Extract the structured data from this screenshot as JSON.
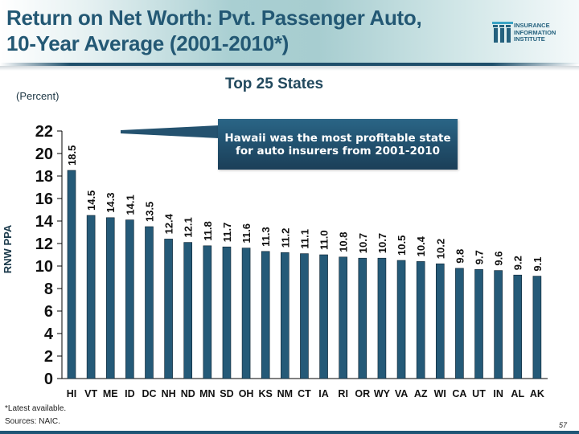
{
  "header": {
    "title_line1": "Return on Net Worth: Pvt. Passenger Auto,",
    "title_line2": "10-Year Average (2001-2010*)",
    "logo": {
      "icon": "iii-logo-icon",
      "line1": "INSURANCE",
      "line2": "INFORMATION",
      "line3": "INSTITUTE"
    }
  },
  "subtitle": {
    "units": "(Percent)",
    "heading": "Top 25 States"
  },
  "callout": {
    "line1": "Hawaii was the most profitable state",
    "line2": "for auto insurers from 2001-2010"
  },
  "footer": {
    "footnote": "*Latest available.",
    "source": "Sources:  NAIC.",
    "page_number": "57"
  },
  "colors": {
    "bar": "#255a78",
    "title": "#235874",
    "callout": "#214f6c"
  },
  "chart_data": {
    "type": "bar",
    "title": "Return on Net Worth: Pvt. Passenger Auto, 10-Year Average (2001-2010*)",
    "subtitle": "Top 25 States",
    "xlabel": "",
    "ylabel": "RNW PPA",
    "units": "Percent",
    "ylim": [
      0,
      22
    ],
    "yticks": [
      0,
      2,
      4,
      6,
      8,
      10,
      12,
      14,
      16,
      18,
      20,
      22
    ],
    "grid": false,
    "categories": [
      "HI",
      "VT",
      "ME",
      "ID",
      "DC",
      "NH",
      "ND",
      "MN",
      "SD",
      "OH",
      "KS",
      "NM",
      "CT",
      "IA",
      "RI",
      "OR",
      "WY",
      "VA",
      "AZ",
      "WI",
      "CA",
      "UT",
      "IN",
      "AL",
      "AK"
    ],
    "values": [
      18.5,
      14.5,
      14.3,
      14.1,
      13.5,
      12.4,
      12.1,
      11.8,
      11.7,
      11.6,
      11.3,
      11.2,
      11.1,
      11.0,
      10.8,
      10.7,
      10.7,
      10.5,
      10.4,
      10.2,
      9.8,
      9.7,
      9.6,
      9.2,
      9.1
    ],
    "data_labels": [
      "18.5",
      "14.5",
      "14.3",
      "14.1",
      "13.5",
      "12.4",
      "12.1",
      "11.8",
      "11.7",
      "11.6",
      "11.3",
      "11.2",
      "11.1",
      "11.0",
      "10.8",
      "10.7",
      "10.7",
      "10.5",
      "10.4",
      "10.2",
      "9.8",
      "9.7",
      "9.6",
      "9.2",
      "9.1"
    ],
    "annotation": "Hawaii was the most profitable state for auto insurers from 2001-2010"
  }
}
